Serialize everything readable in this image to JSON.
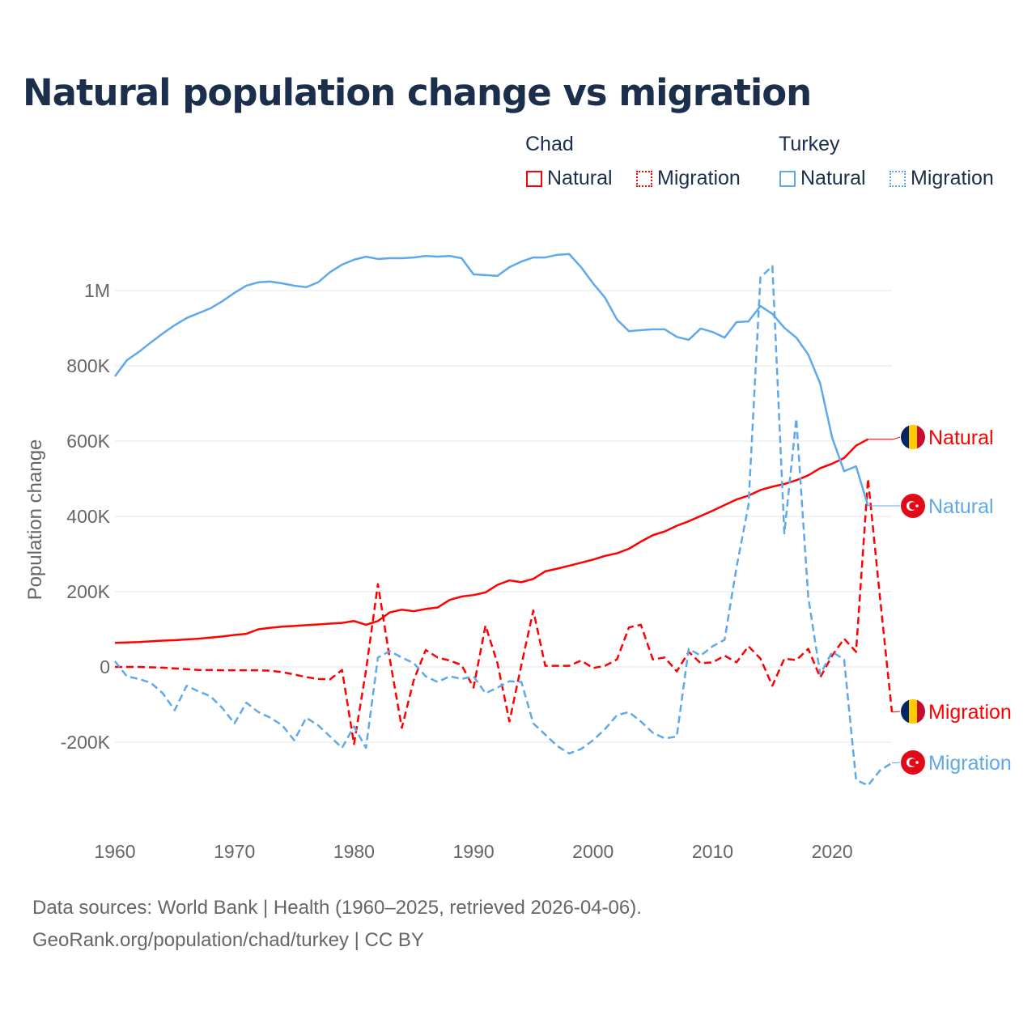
{
  "title": "Natural population change vs migration",
  "legend": {
    "groups": [
      {
        "name": "Chad",
        "items": [
          "Natural",
          "Migration"
        ]
      },
      {
        "name": "Turkey",
        "items": [
          "Natural",
          "Migration"
        ]
      }
    ]
  },
  "colors": {
    "chad": "#ff0000",
    "turkey": "#5ea8ec",
    "grid": "#e6e6e6",
    "axis_text": "#666666"
  },
  "end_labels": [
    {
      "country": "chad",
      "text": "Natural",
      "icon": "chad-flag-icon"
    },
    {
      "country": "turkey",
      "text": "Natural",
      "icon": "turkey-flag-icon"
    },
    {
      "country": "chad",
      "text": "Migration",
      "icon": "chad-flag-icon"
    },
    {
      "country": "turkey",
      "text": "Migration",
      "icon": "turkey-flag-icon"
    }
  ],
  "footer": {
    "line1": "Data sources: World Bank | Health (1960–2025, retrieved 2026-04-06).",
    "line2": "GeoRank.org/population/chad/turkey | CC BY"
  },
  "chart_data": {
    "type": "line",
    "title": "Natural population change vs migration",
    "ylabel": "Population change",
    "xlabel": "",
    "xlim": [
      1960,
      2025
    ],
    "ylim": [
      -400000,
      1150000
    ],
    "x_ticks": [
      1960,
      1970,
      1980,
      1990,
      2000,
      2010,
      2020
    ],
    "y_ticks": [
      {
        "v": -200000,
        "label": "-200K"
      },
      {
        "v": 0,
        "label": "0"
      },
      {
        "v": 200000,
        "label": "200K"
      },
      {
        "v": 400000,
        "label": "400K"
      },
      {
        "v": 600000,
        "label": "600K"
      },
      {
        "v": 800000,
        "label": "800K"
      },
      {
        "v": 1000000,
        "label": "1M"
      }
    ],
    "grid": true,
    "legend_position": "top-right",
    "series": [
      {
        "name": "Chad Natural",
        "country": "chad",
        "style": "solid",
        "start": 1960,
        "values_k": [
          64,
          65,
          66,
          68,
          70,
          71,
          73,
          75,
          78,
          81,
          85,
          88,
          100,
          104,
          107,
          109,
          111,
          113,
          115,
          117,
          122,
          112,
          122,
          145,
          152,
          148,
          154,
          158,
          178,
          187,
          191,
          198,
          218,
          230,
          225,
          234,
          254,
          261,
          269,
          277,
          285,
          295,
          302,
          314,
          333,
          350,
          360,
          375,
          387,
          401,
          415,
          430,
          445,
          455,
          470,
          479,
          486,
          496,
          509,
          528,
          540,
          555,
          588,
          605
        ]
      },
      {
        "name": "Chad Migration",
        "country": "chad",
        "style": "dashed",
        "start": 1960,
        "values_k": [
          0,
          0,
          0,
          -1,
          -2,
          -4,
          -6,
          -8,
          -8,
          -9,
          -9,
          -9,
          -9,
          -10,
          -14,
          -20,
          -27,
          -32,
          -33,
          -8,
          -205,
          -10,
          220,
          20,
          -162,
          -35,
          45,
          25,
          17,
          5,
          -55,
          110,
          10,
          -145,
          5,
          150,
          3,
          3,
          3,
          17,
          -3,
          3,
          20,
          105,
          112,
          20,
          25,
          -12,
          40,
          10,
          12,
          30,
          12,
          55,
          22,
          -50,
          22,
          18,
          48,
          -28,
          30,
          75,
          40,
          500,
          185,
          -120
        ]
      },
      {
        "name": "Turkey Natural",
        "country": "turkey",
        "style": "solid",
        "start": 1960,
        "values_k": [
          772,
          815,
          837,
          862,
          886,
          908,
          927,
          940,
          953,
          972,
          994,
          1013,
          1022,
          1024,
          1019,
          1013,
          1009,
          1022,
          1049,
          1069,
          1082,
          1090,
          1084,
          1086,
          1086,
          1088,
          1092,
          1090,
          1092,
          1086,
          1043,
          1041,
          1039,
          1062,
          1077,
          1088,
          1088,
          1095,
          1097,
          1062,
          1019,
          981,
          923,
          892,
          895,
          897,
          897,
          877,
          869,
          899,
          890,
          875,
          916,
          918,
          959,
          938,
          901,
          875,
          830,
          753,
          609,
          520,
          533,
          428
        ]
      },
      {
        "name": "Turkey Migration",
        "country": "turkey",
        "style": "dashed",
        "start": 1960,
        "values_k": [
          15,
          -25,
          -32,
          -42,
          -70,
          -115,
          -50,
          -65,
          -78,
          -110,
          -150,
          -95,
          -120,
          -135,
          -155,
          -195,
          -135,
          -155,
          -185,
          -215,
          -158,
          -215,
          25,
          42,
          25,
          10,
          -25,
          -40,
          -25,
          -32,
          -25,
          -70,
          -55,
          -38,
          -40,
          -150,
          -180,
          -210,
          -230,
          -218,
          -195,
          -165,
          -128,
          -120,
          -145,
          -175,
          -190,
          -185,
          48,
          30,
          55,
          72,
          265,
          430,
          1035,
          1065,
          355,
          660,
          185,
          -20,
          40,
          20,
          -300,
          -315,
          -275,
          -255
        ]
      }
    ]
  }
}
